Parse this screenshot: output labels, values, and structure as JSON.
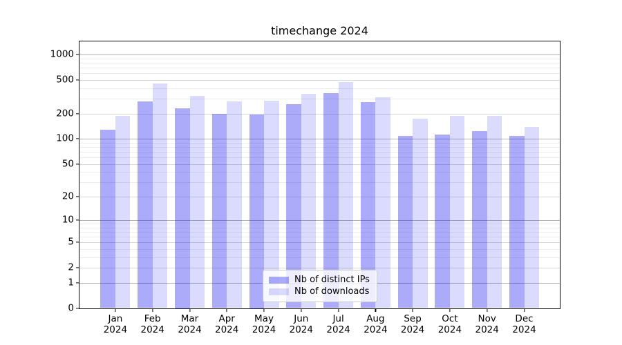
{
  "chart_data": {
    "type": "bar",
    "title": "timechange 2024",
    "yscale": "log1p",
    "grid": "both",
    "legend_position": "lower-center",
    "x_categories": [
      "Jan 2024",
      "Feb 2024",
      "Mar 2024",
      "Apr 2024",
      "May 2024",
      "Jun 2024",
      "Jul 2024",
      "Aug 2024",
      "Sep 2024",
      "Oct 2024",
      "Nov 2024",
      "Dec 2024"
    ],
    "y_ticks": [
      0,
      1,
      2,
      5,
      10,
      20,
      50,
      100,
      200,
      500,
      1000
    ],
    "y_major_ticks": [
      1,
      10,
      100,
      1000
    ],
    "ylim": [
      0,
      1438
    ],
    "series": [
      {
        "name": "Nb of distinct IPs",
        "color": "#aaaafa",
        "fill": "rgba(0,0,240,0.33)",
        "values": [
          129,
          278,
          231,
          199,
          195,
          260,
          352,
          275,
          109,
          113,
          124,
          108
        ]
      },
      {
        "name": "Nb of downloads",
        "color": "#dbdbfb",
        "fill": "rgba(0,0,240,0.14)",
        "values": [
          187,
          455,
          327,
          281,
          285,
          344,
          475,
          313,
          175,
          189,
          189,
          139
        ]
      }
    ],
    "axis_color": "#000000",
    "grid_major_color": "#b0b0b0",
    "grid_minor_color": "#ececec"
  }
}
